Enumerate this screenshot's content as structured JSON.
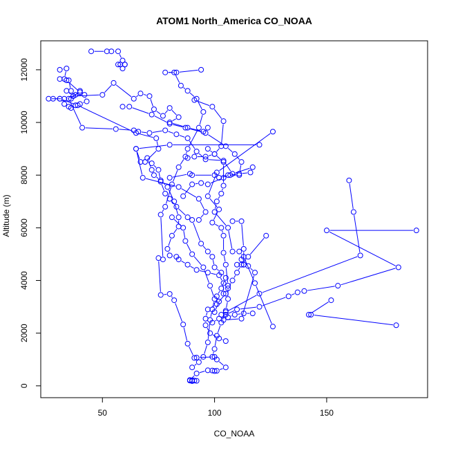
{
  "chart_data": {
    "type": "line",
    "title": "ATOM1 North_America CO_NOAA",
    "xlabel": "CO_NOAA",
    "ylabel": "Altitude (m)",
    "xlim": [
      22.5,
      195
    ],
    "ylim": [
      -450,
      13100
    ],
    "xticks": [
      50,
      100,
      150
    ],
    "yticks": [
      0,
      2000,
      4000,
      6000,
      8000,
      10000,
      12000
    ],
    "grid": false,
    "legend": "none",
    "colors": {
      "series": "#0000ff",
      "axis": "#000000"
    },
    "markers": "open-circle",
    "series": [
      {
        "name": "",
        "points": [
          [
            89,
            200
          ],
          [
            90,
            180
          ],
          [
            91,
            200
          ],
          [
            92,
            190
          ],
          [
            90,
            210
          ],
          [
            89,
            220
          ],
          [
            92,
            470
          ],
          [
            97,
            590
          ],
          [
            99,
            580
          ],
          [
            100,
            560
          ],
          [
            101,
            570
          ],
          [
            105,
            700
          ],
          [
            101,
            1000
          ],
          [
            100,
            1100
          ],
          [
            92,
            1070
          ],
          [
            91,
            1060
          ],
          [
            88,
            1600
          ],
          [
            86,
            2330
          ],
          [
            82,
            3250
          ],
          [
            80,
            3490
          ],
          [
            76,
            3450
          ],
          [
            75,
            4850
          ],
          [
            77,
            4800
          ],
          [
            76,
            6500
          ],
          [
            78,
            6800
          ],
          [
            81,
            7650
          ],
          [
            84,
            8300
          ],
          [
            87,
            8700
          ],
          [
            88,
            9000
          ],
          [
            93,
            9800
          ],
          [
            95,
            10400
          ],
          [
            92,
            10900
          ],
          [
            88,
            11200
          ],
          [
            85,
            11400
          ],
          [
            82,
            11900
          ],
          [
            78,
            11900
          ],
          [
            83,
            11900
          ],
          [
            94,
            12000
          ]
        ]
      },
      {
        "name": "",
        "points": [
          [
            45,
            12700
          ],
          [
            52,
            12700
          ],
          [
            54,
            12700
          ],
          [
            57,
            12700
          ],
          [
            59,
            12350
          ],
          [
            58,
            12200
          ],
          [
            60,
            12200
          ],
          [
            59,
            12050
          ],
          [
            60,
            12200
          ],
          [
            57,
            12200
          ]
        ]
      },
      {
        "name": "",
        "points": [
          [
            31,
            12000
          ],
          [
            34,
            12050
          ],
          [
            33,
            11650
          ],
          [
            35,
            11600
          ],
          [
            36,
            11200
          ],
          [
            34,
            11200
          ],
          [
            37,
            11000
          ],
          [
            38,
            11050
          ],
          [
            40,
            11200
          ],
          [
            36,
            10900
          ],
          [
            33,
            10900
          ],
          [
            28,
            10900
          ],
          [
            26,
            10900
          ],
          [
            31,
            10900
          ],
          [
            33,
            10700
          ],
          [
            35,
            10600
          ],
          [
            36,
            10550
          ],
          [
            38,
            10650
          ],
          [
            40,
            10700
          ],
          [
            43,
            10800
          ],
          [
            42,
            11050
          ],
          [
            37,
            11000
          ],
          [
            50,
            11050
          ],
          [
            55,
            11500
          ],
          [
            64,
            10900
          ],
          [
            67,
            11100
          ],
          [
            71,
            11000
          ],
          [
            73,
            10500
          ],
          [
            77,
            10250
          ],
          [
            80,
            10550
          ],
          [
            84,
            10200
          ],
          [
            80,
            10000
          ],
          [
            88,
            9800
          ],
          [
            95,
            9650
          ],
          [
            97,
            9800
          ]
        ]
      },
      {
        "name": "",
        "points": [
          [
            31,
            11650
          ],
          [
            34,
            11600
          ],
          [
            40,
            11150
          ],
          [
            35,
            10900
          ],
          [
            41,
            9800
          ],
          [
            56,
            9750
          ],
          [
            64,
            9700
          ],
          [
            66,
            9650
          ],
          [
            71,
            9600
          ],
          [
            78,
            9700
          ],
          [
            83,
            9550
          ],
          [
            88,
            9400
          ],
          [
            92,
            8900
          ],
          [
            96,
            8600
          ],
          [
            104,
            8550
          ],
          [
            108,
            8050
          ],
          [
            117,
            8300
          ],
          [
            116,
            8100
          ],
          [
            111,
            8050
          ],
          [
            106,
            8000
          ],
          [
            104,
            7900
          ],
          [
            97,
            7650
          ],
          [
            94,
            7700
          ],
          [
            90,
            7650
          ],
          [
            86,
            7200
          ]
        ]
      },
      {
        "name": "",
        "points": [
          [
            31,
            10900
          ],
          [
            39,
            10650
          ],
          [
            65,
            9600
          ],
          [
            74,
            9400
          ],
          [
            75,
            9000
          ],
          [
            69,
            8500
          ],
          [
            72,
            8450
          ],
          [
            75,
            8200
          ],
          [
            76,
            7750
          ],
          [
            78,
            7300
          ],
          [
            80,
            7100
          ],
          [
            83,
            6800
          ],
          [
            88,
            6400
          ],
          [
            90,
            6300
          ],
          [
            94,
            5400
          ],
          [
            97,
            5100
          ],
          [
            99,
            4900
          ],
          [
            100,
            4500
          ],
          [
            103,
            4300
          ],
          [
            105,
            4100
          ],
          [
            103,
            3700
          ],
          [
            101,
            3400
          ],
          [
            102,
            3200
          ],
          [
            100,
            2800
          ]
        ]
      },
      {
        "name": "",
        "points": [
          [
            59,
            10600
          ],
          [
            62,
            10600
          ],
          [
            72,
            10300
          ],
          [
            80,
            9950
          ],
          [
            87,
            9800
          ],
          [
            96,
            9600
          ],
          [
            105,
            9100
          ],
          [
            109,
            8800
          ],
          [
            112,
            8500
          ],
          [
            111,
            8000
          ],
          [
            107,
            8000
          ],
          [
            102,
            7900
          ],
          [
            100,
            8000
          ],
          [
            90,
            8000
          ],
          [
            89,
            8050
          ],
          [
            80,
            7900
          ]
        ]
      },
      {
        "name": "",
        "points": [
          [
            91,
            10850
          ],
          [
            99,
            10600
          ],
          [
            104,
            10050
          ],
          [
            103,
            9100
          ],
          [
            100,
            8800
          ],
          [
            96,
            8700
          ],
          [
            91,
            8700
          ],
          [
            88,
            8650
          ]
        ]
      },
      {
        "name": "",
        "points": [
          [
            65,
            9000
          ],
          [
            67,
            8500
          ],
          [
            70,
            8650
          ],
          [
            72,
            8200
          ],
          [
            73,
            8000
          ],
          [
            76,
            7800
          ],
          [
            79,
            7550
          ],
          [
            82,
            7000
          ],
          [
            84,
            6400
          ],
          [
            84,
            6050
          ],
          [
            81,
            5700
          ],
          [
            79,
            5200
          ],
          [
            80,
            4950
          ],
          [
            83,
            4900
          ],
          [
            84,
            4800
          ],
          [
            88,
            4600
          ],
          [
            92,
            4400
          ],
          [
            97,
            4300
          ],
          [
            102,
            4200
          ],
          [
            104,
            3900
          ],
          [
            104,
            3500
          ]
        ]
      },
      {
        "name": "",
        "points": [
          [
            126,
            9650
          ],
          [
            101,
            8100
          ],
          [
            97,
            7200
          ],
          [
            102,
            6700
          ],
          [
            99,
            6200
          ],
          [
            103,
            6000
          ],
          [
            104,
            5700
          ],
          [
            104,
            5050
          ],
          [
            105,
            4600
          ],
          [
            106,
            3800
          ],
          [
            106,
            3300
          ],
          [
            105,
            2850
          ],
          [
            103,
            2700
          ],
          [
            102,
            2550
          ],
          [
            99,
            2400
          ]
        ]
      },
      {
        "name": "",
        "points": [
          [
            120,
            9150
          ],
          [
            80,
            9150
          ],
          [
            65,
            9000
          ],
          [
            68,
            7900
          ],
          [
            84,
            7550
          ],
          [
            93,
            7100
          ],
          [
            96,
            6600
          ],
          [
            93,
            6300
          ]
        ]
      },
      {
        "name": "",
        "points": [
          [
            81,
            6400
          ],
          [
            86,
            6000
          ],
          [
            87,
            5500
          ],
          [
            90,
            5000
          ],
          [
            95,
            4500
          ],
          [
            98,
            3800
          ],
          [
            100,
            3300
          ],
          [
            99,
            2900
          ],
          [
            98,
            2500
          ],
          [
            97,
            1650
          ],
          [
            95,
            1100
          ],
          [
            93,
            900
          ],
          [
            90,
            700
          ]
        ]
      },
      {
        "name": "",
        "points": [
          [
            160,
            7800
          ],
          [
            162,
            6600
          ],
          [
            165,
            4950
          ],
          [
            120,
            3500
          ],
          [
            105,
            2800
          ],
          [
            103,
            2400
          ],
          [
            101,
            1900
          ],
          [
            100,
            1400
          ],
          [
            99,
            1100
          ]
        ]
      },
      {
        "name": "",
        "points": [
          [
            190,
            5900
          ],
          [
            150,
            5900
          ],
          [
            182,
            4500
          ],
          [
            155,
            3800
          ],
          [
            140,
            3600
          ],
          [
            137,
            3550
          ],
          [
            133,
            3400
          ],
          [
            120,
            3000
          ],
          [
            110,
            2900
          ],
          [
            105,
            2700
          ]
        ]
      },
      {
        "name": "",
        "points": [
          [
            152,
            3250
          ],
          [
            142,
            2700
          ],
          [
            143,
            2700
          ],
          [
            181,
            2300
          ]
        ]
      },
      {
        "name": "",
        "points": [
          [
            123,
            5700
          ],
          [
            115,
            4900
          ],
          [
            112,
            4600
          ],
          [
            110,
            4300
          ],
          [
            108,
            4000
          ],
          [
            106,
            3700
          ],
          [
            105,
            3500
          ],
          [
            101,
            3100
          ],
          [
            97,
            2900
          ],
          [
            96,
            2550
          ],
          [
            96,
            2300
          ],
          [
            98,
            2000
          ],
          [
            102,
            1800
          ],
          [
            105,
            1700
          ]
        ]
      },
      {
        "name": "",
        "points": [
          [
            117,
            2750
          ],
          [
            113,
            2750
          ],
          [
            109,
            2700
          ],
          [
            106,
            2600
          ],
          [
            104,
            2500
          ],
          [
            112,
            2550
          ],
          [
            118,
            4300
          ],
          [
            115,
            4550
          ],
          [
            113,
            4600
          ],
          [
            112,
            4800
          ]
        ]
      },
      {
        "name": "",
        "points": [
          [
            126,
            2250
          ],
          [
            118,
            3900
          ],
          [
            113,
            4900
          ],
          [
            111,
            5100
          ],
          [
            108,
            5100
          ],
          [
            106,
            6000
          ],
          [
            100,
            6600
          ],
          [
            101,
            7000
          ],
          [
            103,
            7300
          ],
          [
            104,
            7600
          ],
          [
            104,
            8500
          ],
          [
            100,
            8800
          ],
          [
            97,
            9000
          ]
        ]
      },
      {
        "name": "",
        "points": [
          [
            108,
            6250
          ],
          [
            112,
            6250
          ],
          [
            113,
            5200
          ],
          [
            113,
            4600
          ],
          [
            110,
            4600
          ]
        ]
      }
    ]
  }
}
